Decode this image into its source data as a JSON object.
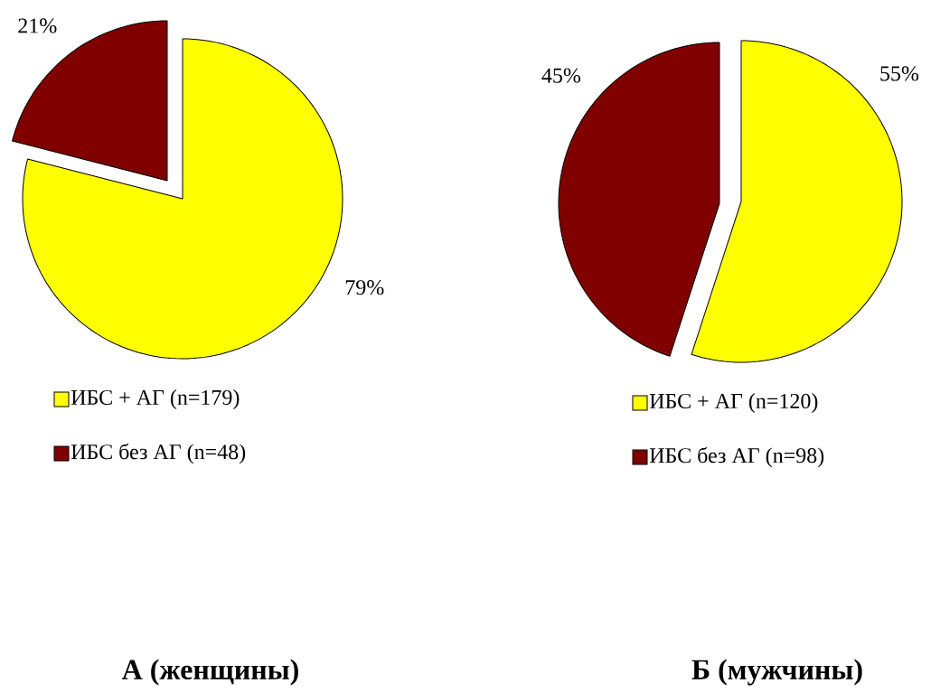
{
  "chart_data": [
    {
      "type": "pie",
      "title": "**А (женщины)**",
      "categories": [
        "ИБС + АГ (n=179)",
        "ИБС без АГ (n=48)"
      ],
      "values": [
        79,
        21
      ],
      "value_labels": [
        "79%",
        "21%"
      ],
      "colors": [
        "#ffff00",
        "#800000"
      ],
      "legend": "bottom"
    },
    {
      "type": "pie",
      "title": "**Б (мужчины)**",
      "categories": [
        "ИБС + АГ (n=120)",
        "ИБС без АГ (n=98)"
      ],
      "values": [
        55,
        45
      ],
      "value_labels": [
        "55%",
        "45%"
      ],
      "colors": [
        "#ffff00",
        "#800000"
      ],
      "legend": "bottom"
    }
  ]
}
